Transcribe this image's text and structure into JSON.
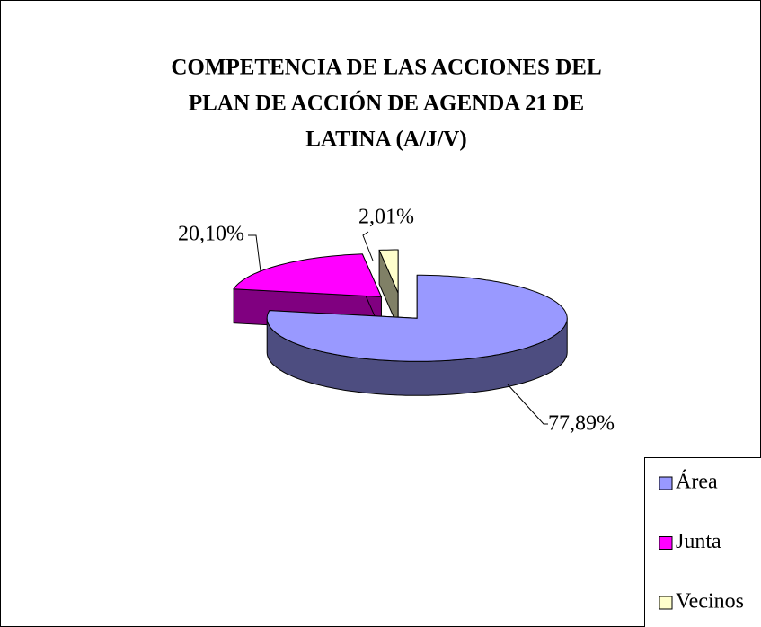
{
  "chart_data": {
    "type": "pie",
    "title": [
      "COMPETENCIA DE LAS ACCIONES DEL",
      "PLAN DE ACCIÓN DE AGENDA 21 DE",
      "LATINA (A/J/V)"
    ],
    "categories": [
      "Área",
      "Junta",
      "Vecinos"
    ],
    "values": [
      77.89,
      20.1,
      2.01
    ],
    "value_labels": [
      "77,89%",
      "20,10%",
      "2,01%"
    ],
    "colors": [
      "#9999ff",
      "#ff00ff",
      "#ffffcc"
    ],
    "legend": "bottom-right",
    "three_d": true
  }
}
